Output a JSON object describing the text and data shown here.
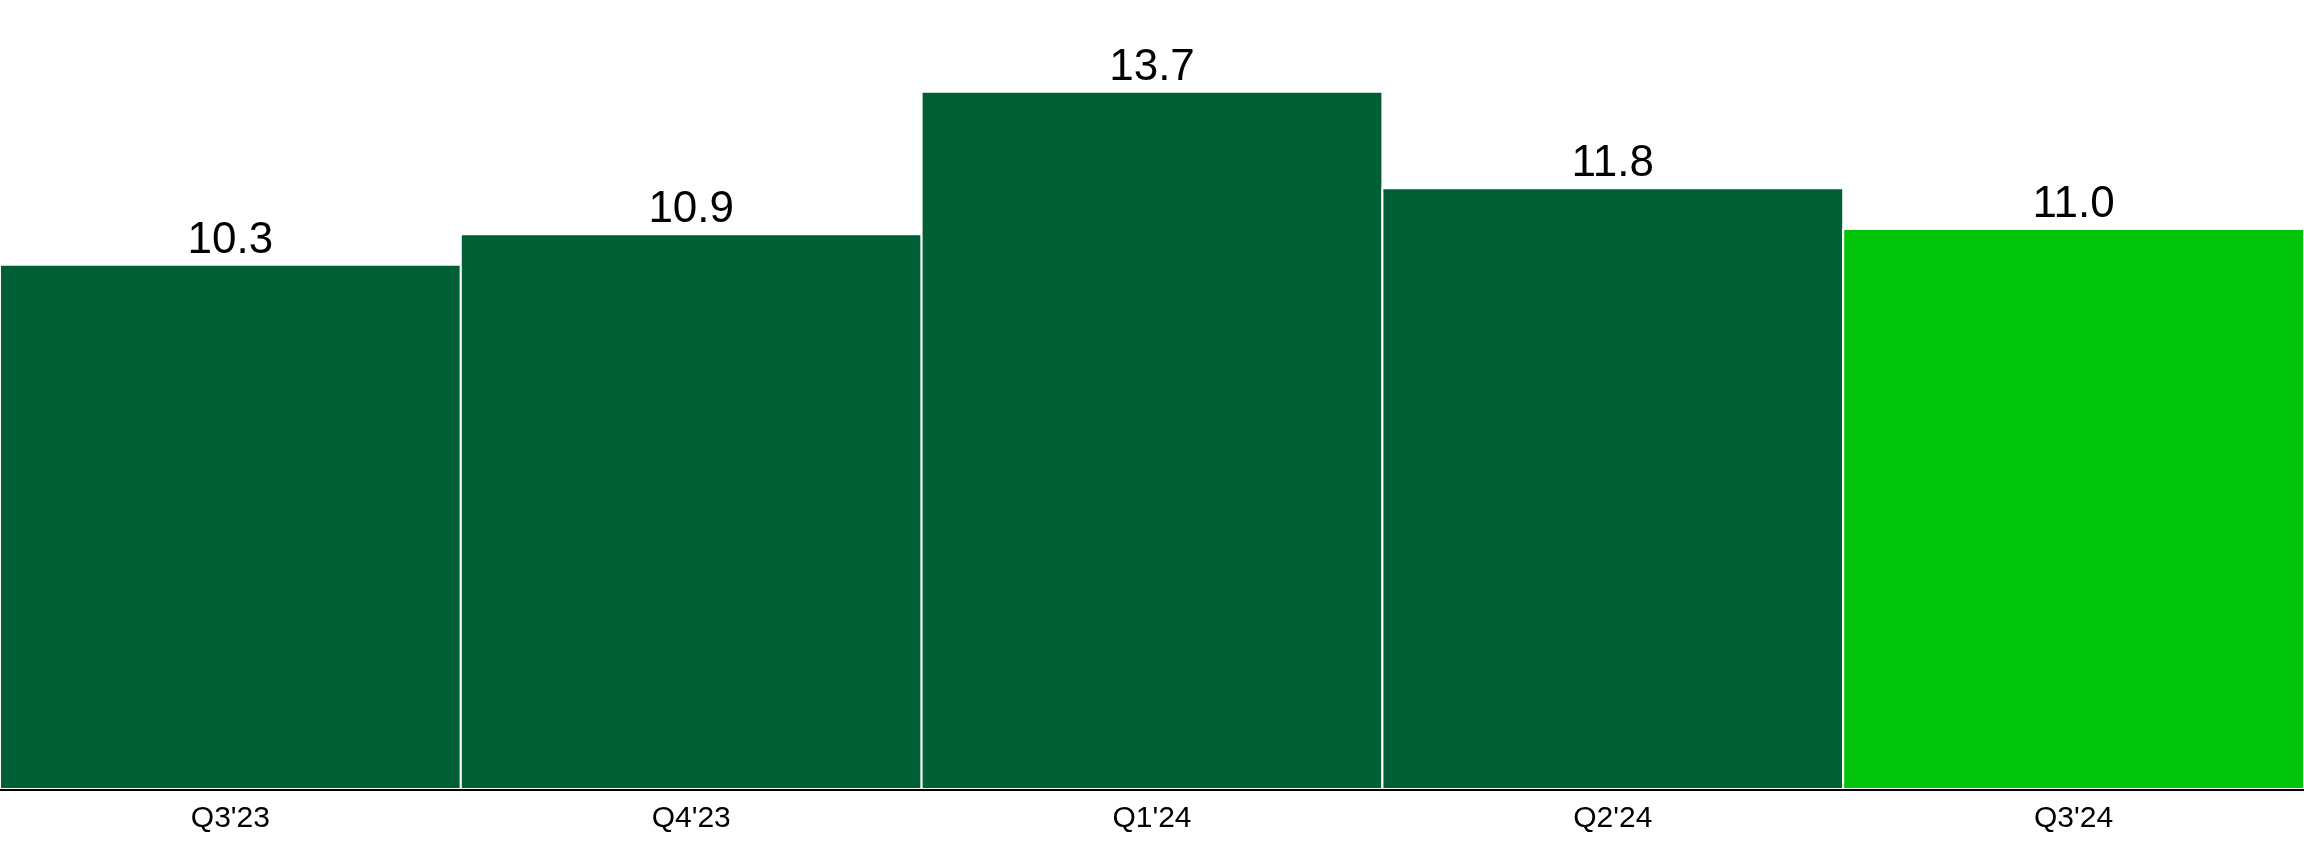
{
  "chart_data": {
    "type": "bar",
    "categories": [
      "Q3'23",
      "Q4'23",
      "Q1'24",
      "Q2'24",
      "Q3'24"
    ],
    "values": [
      10.3,
      10.9,
      13.7,
      11.8,
      11.0
    ],
    "value_labels": [
      "10.3",
      "10.9",
      "13.7",
      "11.8",
      "11.0"
    ],
    "colors": [
      "#005f35",
      "#005f35",
      "#005f35",
      "#005f35",
      "#00c40a"
    ],
    "ylim": [
      0,
      15.5
    ],
    "tick_labels": "x"
  }
}
